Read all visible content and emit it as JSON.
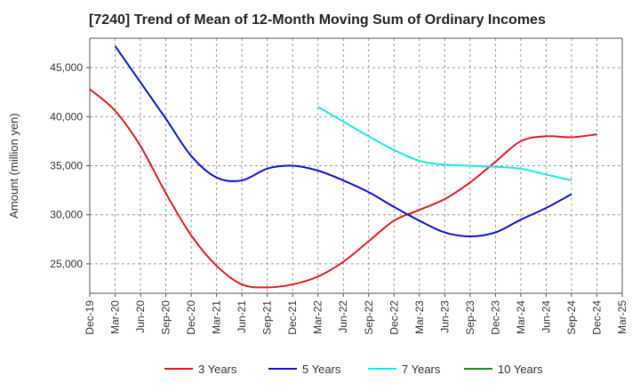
{
  "chart_data": {
    "type": "line",
    "title": "[7240]  Trend of Mean of 12-Month Moving Sum of Ordinary Incomes",
    "xlabel": "",
    "ylabel": "Amount (million yen)",
    "ylim": [
      22000,
      48000
    ],
    "yticks": [
      25000,
      30000,
      35000,
      40000,
      45000
    ],
    "ytick_labels": [
      "25,000",
      "30,000",
      "35,000",
      "40,000",
      "45,000"
    ],
    "grid": true,
    "legend_position": "bottom",
    "x_labels": [
      "Dec-19",
      "Mar-20",
      "Jun-20",
      "Sep-20",
      "Dec-20",
      "Mar-21",
      "Jun-21",
      "Sep-21",
      "Dec-21",
      "Mar-22",
      "Jun-22",
      "Sep-22",
      "Dec-22",
      "Mar-23",
      "Jun-23",
      "Sep-23",
      "Dec-23",
      "Mar-24",
      "Jun-24",
      "Sep-24",
      "Dec-24",
      "Mar-25"
    ],
    "series": [
      {
        "name": "3 Years",
        "color": "#e31a1c",
        "start_index": 0,
        "values": [
          42800,
          40600,
          37000,
          32200,
          27900,
          24800,
          22900,
          22600,
          22900,
          23700,
          25200,
          27300,
          29400,
          30500,
          31600,
          33300,
          35400,
          37500,
          38000,
          37900,
          38200
        ]
      },
      {
        "name": "5 Years",
        "color": "#0a12d4",
        "start_index": 1,
        "values": [
          47200,
          43500,
          39800,
          36000,
          33800,
          33500,
          34700,
          35000,
          34500,
          33500,
          32300,
          30800,
          29400,
          28200,
          27800,
          28200,
          29500,
          30700,
          32100
        ]
      },
      {
        "name": "7 Years",
        "color": "#17e8ec",
        "start_index": 9,
        "values": [
          41000,
          39500,
          38000,
          36600,
          35500,
          35100,
          35000,
          34900,
          34700,
          34100,
          33500
        ]
      },
      {
        "name": "10 Years",
        "color": "#1a8c1a",
        "start_index": 0,
        "values": []
      }
    ]
  }
}
